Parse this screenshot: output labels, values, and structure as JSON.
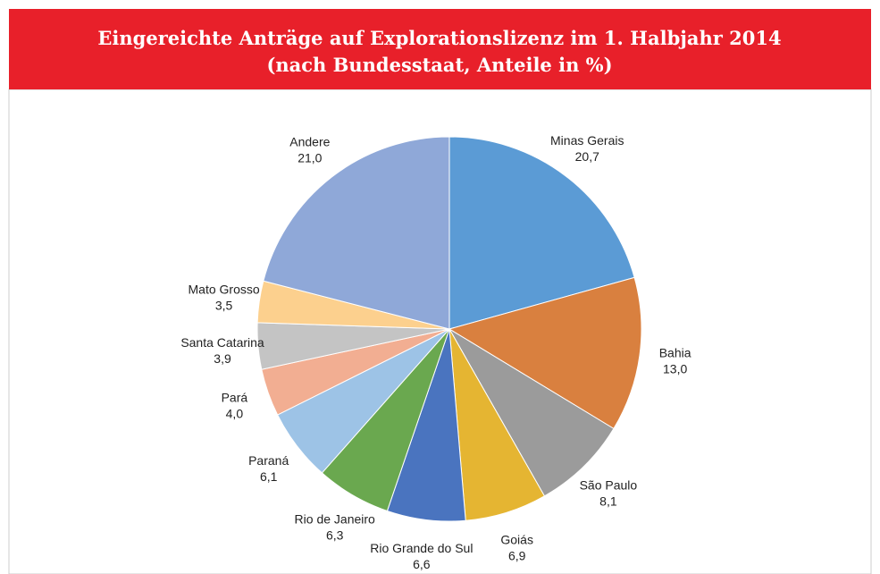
{
  "chart_data": {
    "type": "pie",
    "title": "Eingereichte Anträge auf Explorationslizenz im 1. Halbjahr 2014",
    "subtitle": "(nach Bundesstaat, Anteile in %)",
    "categories": [
      "Minas Gerais",
      "Bahia",
      "São Paulo",
      "Goiás",
      "Rio Grande do Sul",
      "Rio de Janeiro",
      "Paraná",
      "Pará",
      "Santa Catarina",
      "Mato Grosso",
      "Andere"
    ],
    "values": [
      20.7,
      13.0,
      8.1,
      6.9,
      6.6,
      6.3,
      6.1,
      4.0,
      3.9,
      3.5,
      21.0
    ],
    "value_labels": [
      "20,7",
      "13,0",
      "8,1",
      "6,9",
      "6,6",
      "6,3",
      "6,1",
      "4,0",
      "3,9",
      "3,5",
      "21,0"
    ],
    "colors": [
      "#5b9bd5",
      "#d9803f",
      "#9b9b9b",
      "#e5b532",
      "#4a74bf",
      "#6aa84f",
      "#9dc3e6",
      "#f2ae92",
      "#c4c4c4",
      "#fcd08e",
      "#8fa8d8"
    ]
  }
}
